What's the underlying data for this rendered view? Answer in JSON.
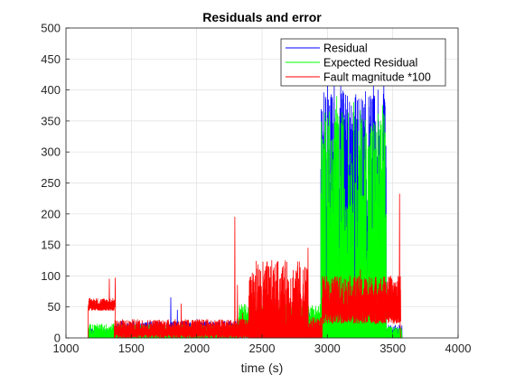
{
  "chart_data": {
    "type": "line",
    "title": "Residuals and error",
    "xlabel": "time (s)",
    "ylabel": "",
    "xlim": [
      1000,
      4000
    ],
    "ylim": [
      0,
      500
    ],
    "xticks": [
      1000,
      1500,
      2000,
      2500,
      3000,
      3500,
      4000
    ],
    "yticks": [
      0,
      50,
      100,
      150,
      200,
      250,
      300,
      350,
      400,
      450,
      500
    ],
    "grid": true,
    "legend_position": "top-right",
    "series": [
      {
        "name": "Residual",
        "color": "#0000ff",
        "segments": [
          {
            "x": [
              1170,
              1380
            ],
            "base": 3,
            "amp": 12,
            "spikes": []
          },
          {
            "x": [
              1380,
              2320
            ],
            "base": 5,
            "amp": 22,
            "spikes": [
              [
                1800,
                65
              ],
              [
                1850,
                45
              ],
              [
                2000,
                30
              ]
            ]
          },
          {
            "x": [
              2320,
              2950
            ],
            "base": 10,
            "amp": 25,
            "spikes": [
              [
                2600,
                30
              ],
              [
                2860,
                40
              ]
            ]
          },
          {
            "x": [
              2950,
              3450
            ],
            "base": 60,
            "amp": 340,
            "spikes": [
              [
                3000,
                430
              ],
              [
                3050,
                420
              ],
              [
                3100,
                415
              ],
              [
                3350,
                420
              ],
              [
                3430,
                430
              ]
            ]
          },
          {
            "x": [
              3450,
              3570
            ],
            "base": 3,
            "amp": 18,
            "spikes": []
          }
        ]
      },
      {
        "name": "Expected Residual",
        "color": "#00ff00",
        "segments": [
          {
            "x": [
              1170,
              1380
            ],
            "base": 3,
            "amp": 20,
            "spikes": []
          },
          {
            "x": [
              1380,
              2320
            ],
            "base": 3,
            "amp": 18,
            "spikes": [
              [
                1550,
                25
              ]
            ]
          },
          {
            "x": [
              2320,
              2950
            ],
            "base": 15,
            "amp": 40,
            "spikes": [
              [
                2700,
                60
              ]
            ]
          },
          {
            "x": [
              2950,
              3450
            ],
            "base": 20,
            "amp": 350,
            "spikes": [
              [
                3000,
                355
              ],
              [
                3070,
                390
              ],
              [
                3200,
                380
              ],
              [
                3420,
                375
              ]
            ]
          },
          {
            "x": [
              3450,
              3570
            ],
            "base": 3,
            "amp": 15,
            "spikes": []
          }
        ]
      },
      {
        "name": "Fault magnitude *100",
        "color": "#ff0000",
        "segments": [
          {
            "x": [
              1170,
              1370
            ],
            "base": 50,
            "amp": 14,
            "spikes": [
              [
                1330,
                95
              ],
              [
                1375,
                97
              ]
            ]
          },
          {
            "x": [
              1370,
              2400
            ],
            "base": 8,
            "amp": 22,
            "spikes": [
              [
                1880,
                55
              ],
              [
                2290,
                195
              ],
              [
                2310,
                85
              ],
              [
                2350,
                40
              ]
            ]
          },
          {
            "x": [
              2400,
              2850
            ],
            "base": 0,
            "amp": 125,
            "spikes": [
              [
                2850,
                145
              ]
            ]
          },
          {
            "x": [
              2850,
              2960
            ],
            "base": 3,
            "amp": 30,
            "spikes": []
          },
          {
            "x": [
              2960,
              3560
            ],
            "base": 45,
            "amp": 55,
            "spikes": [
              [
                3250,
                110
              ],
              [
                3550,
                232
              ]
            ]
          }
        ]
      }
    ]
  }
}
